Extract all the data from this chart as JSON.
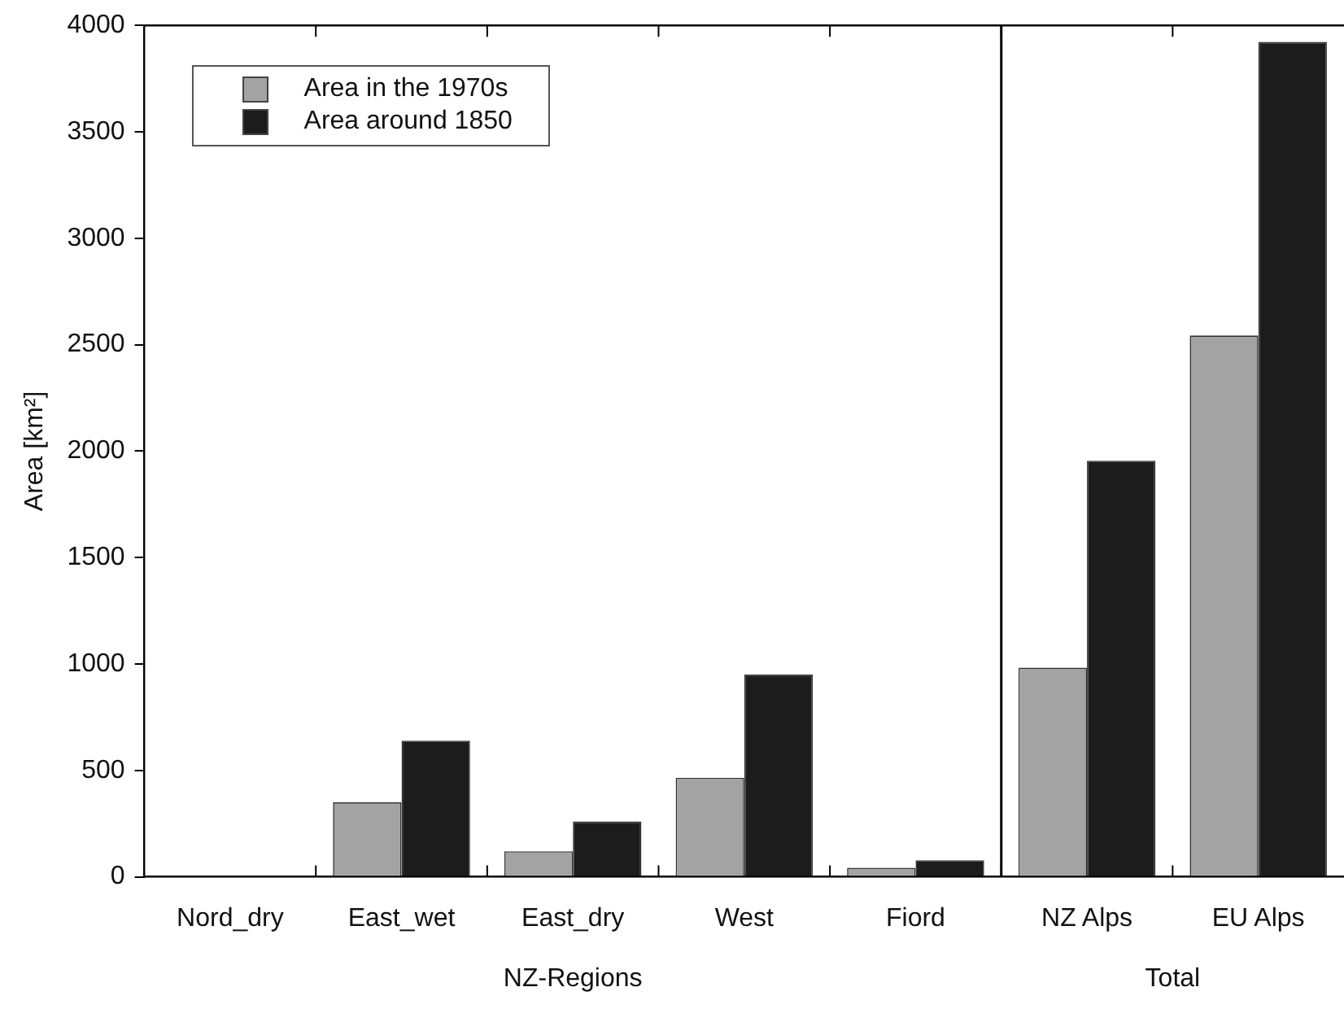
{
  "chart_data": {
    "type": "bar",
    "ylabel": "Area [km²]",
    "categories": [
      "Nord_dry",
      "East_wet",
      "East_dry",
      "West",
      "Fiord",
      "NZ Alps",
      "EU Alps"
    ],
    "series": [
      {
        "name": "Area in the 1970s",
        "color": "#a3a3a3",
        "values": [
          0,
          350,
          120,
          465,
          42,
          983,
          2543
        ]
      },
      {
        "name": "Area around 1850",
        "color": "#1c1c1c",
        "values": [
          0,
          640,
          260,
          950,
          78,
          1955,
          3922
        ]
      }
    ],
    "ylim": [
      0,
      4000
    ],
    "yticks": [
      0,
      500,
      1000,
      1500,
      2000,
      2500,
      3000,
      3500,
      4000
    ],
    "annotations": [
      "NZ-Regions",
      "Total"
    ],
    "grid": false,
    "legend": "top left"
  }
}
